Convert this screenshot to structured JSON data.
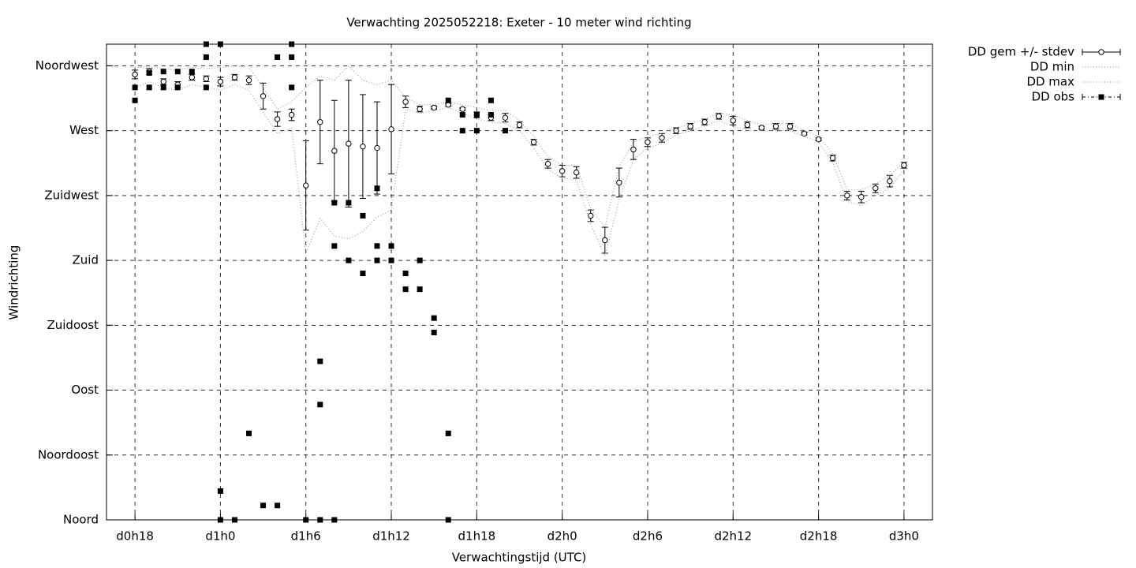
{
  "chart_data": {
    "type": "line",
    "title": "Verwachting 2025052218: Exeter - 10 meter wind richting",
    "xlabel": "Verwachtingstijd (UTC)",
    "ylabel": "Windrichting",
    "xlim": [
      16,
      74
    ],
    "ylim": [
      0,
      330
    ],
    "xticks": [
      {
        "value": 18,
        "label": "d0h18"
      },
      {
        "value": 24,
        "label": "d1h0"
      },
      {
        "value": 30,
        "label": "d1h6"
      },
      {
        "value": 36,
        "label": "d1h12"
      },
      {
        "value": 42,
        "label": "d1h18"
      },
      {
        "value": 48,
        "label": "d2h0"
      },
      {
        "value": 54,
        "label": "d2h6"
      },
      {
        "value": 60,
        "label": "d2h12"
      },
      {
        "value": 66,
        "label": "d2h18"
      },
      {
        "value": 72,
        "label": "d3h0"
      }
    ],
    "yticks": [
      {
        "value": 0,
        "label": "Noord"
      },
      {
        "value": 45,
        "label": "Noordoost"
      },
      {
        "value": 90,
        "label": "Oost"
      },
      {
        "value": 135,
        "label": "Zuidoost"
      },
      {
        "value": 180,
        "label": "Zuid"
      },
      {
        "value": 225,
        "label": "Zuidwest"
      },
      {
        "value": 270,
        "label": "West"
      },
      {
        "value": 315,
        "label": "Noordwest"
      }
    ],
    "grid": true,
    "legend": "outside-top-right",
    "x": [
      18,
      19,
      20,
      21,
      22,
      23,
      24,
      25,
      26,
      27,
      28,
      29,
      30,
      31,
      32,
      33,
      34,
      35,
      36,
      37,
      38,
      39,
      40,
      41,
      42,
      43,
      44,
      45,
      46,
      47,
      48,
      49,
      50,
      51,
      52,
      53,
      54,
      55,
      56,
      57,
      58,
      59,
      60,
      61,
      62,
      63,
      64,
      65,
      66,
      67,
      68,
      69,
      70,
      71,
      72
    ],
    "series": [
      {
        "name": "DD gem +/- stdev",
        "color": "#000000",
        "style": "errorbar",
        "values": [
          309,
          311,
          304,
          302,
          307,
          306,
          304,
          307,
          305,
          294,
          278,
          281,
          232,
          276,
          256,
          261,
          259,
          258,
          271,
          290,
          285,
          286,
          288,
          285,
          281,
          279,
          279,
          274,
          262,
          247,
          242,
          241,
          211,
          194,
          234,
          257,
          262,
          265,
          270,
          273,
          276,
          280,
          277,
          274,
          272,
          273,
          273,
          268,
          264,
          251,
          225,
          224,
          230,
          235,
          246
        ],
        "errors": [
          3,
          2,
          2,
          2,
          2,
          2,
          3,
          2,
          3,
          9,
          5,
          4,
          31,
          29,
          35,
          44,
          36,
          32,
          31,
          4,
          2,
          1,
          1,
          1,
          2,
          2,
          3,
          2,
          2,
          3,
          4,
          4,
          4,
          9,
          10,
          7,
          3,
          3,
          2,
          2,
          2,
          2,
          3,
          2,
          1,
          2,
          2,
          1,
          1,
          2,
          3,
          4,
          3,
          4,
          2
        ]
      },
      {
        "name": "DD min",
        "color": "#a0a0a0",
        "style": "dotted",
        "values": [
          300,
          304,
          300,
          298,
          302,
          300,
          298,
          302,
          298,
          283,
          268,
          272,
          185,
          209,
          197,
          195,
          200,
          210,
          215,
          285,
          282,
          284,
          286,
          282,
          278,
          276,
          275,
          270,
          258,
          243,
          237,
          236,
          205,
          183,
          222,
          250,
          258,
          261,
          267,
          270,
          273,
          277,
          273,
          270,
          270,
          270,
          270,
          266,
          262,
          248,
          221,
          218,
          225,
          230,
          243
        ]
      },
      {
        "name": "DD max",
        "color": "#a0a0a0",
        "style": "dotted",
        "values": [
          314,
          314,
          313,
          312,
          314,
          313,
          314,
          315,
          314,
          300,
          285,
          290,
          300,
          308,
          305,
          315,
          305,
          302,
          305,
          293,
          288,
          288,
          290,
          288,
          286,
          284,
          284,
          277,
          266,
          252,
          246,
          246,
          216,
          203,
          245,
          262,
          266,
          268,
          272,
          275,
          278,
          282,
          281,
          277,
          274,
          275,
          275,
          270,
          266,
          254,
          229,
          229,
          233,
          239,
          248
        ]
      },
      {
        "name": "DD obs",
        "color": "#000000",
        "style": "points",
        "x": [
          18,
          18,
          19,
          19,
          20,
          20,
          21,
          21,
          22,
          23,
          23,
          23,
          24,
          24,
          24,
          25,
          26,
          27,
          28,
          28,
          29,
          29,
          29,
          30,
          31,
          31,
          31,
          32,
          32,
          32,
          33,
          33,
          34,
          34,
          35,
          35,
          35,
          36,
          36,
          37,
          37,
          38,
          38,
          39,
          39,
          40,
          40,
          40,
          41,
          41,
          42,
          42,
          43,
          43,
          44
        ],
        "values": [
          291,
          300,
          310,
          300,
          311,
          300,
          311,
          300,
          311,
          330,
          321,
          300,
          330,
          20,
          0,
          0,
          60,
          10,
          10,
          321,
          330,
          321,
          300,
          0,
          0,
          110,
          80,
          0,
          220,
          190,
          220,
          180,
          211,
          171,
          230,
          190,
          180,
          190,
          180,
          171,
          160,
          160,
          180,
          140,
          130,
          0,
          60,
          291,
          281,
          270,
          281,
          270,
          291,
          281,
          270
        ]
      }
    ]
  }
}
